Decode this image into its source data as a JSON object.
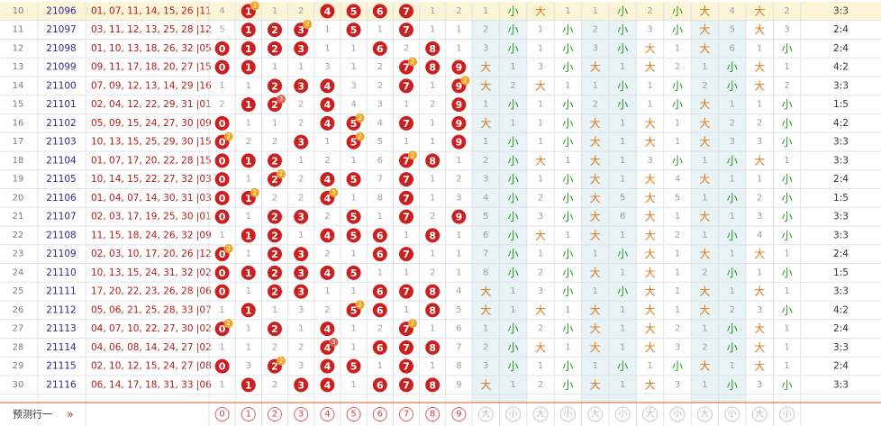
{
  "colors": {
    "ball": "#cc1f1f",
    "repeat_badge": "#f0a424",
    "double_badge": "#e0604a",
    "issue_text": "#2a2a8a",
    "numbers_text": "#b01c1c",
    "da": "#e07818",
    "xiao": "#25941f",
    "gray": "#a0a0a0",
    "highlight_row": "#fcf4d6",
    "highlight_col": "#e7f3f4",
    "grid_line": "#dfe3e8",
    "footer_line": "#e07a4a"
  },
  "columns": {
    "hit_digits": [
      "0",
      "1",
      "2",
      "3",
      "4",
      "5",
      "6",
      "7",
      "8",
      "9"
    ],
    "size_group": [
      "大",
      "小",
      "大",
      "小",
      "大",
      "小",
      "大",
      "小",
      "大",
      "小",
      "大",
      "小"
    ],
    "size_cols_per_group": 2
  },
  "rows": [
    {
      "idx": "10",
      "issue": "21096",
      "numbers": "01, 07, 11, 14, 15, 26 |11",
      "cells": [
        "4",
        "1",
        "1",
        "2",
        "4",
        "5",
        "6",
        "7",
        "1",
        "2"
      ],
      "hits": [
        1,
        4,
        5,
        6,
        7
      ],
      "badges": {
        "1": "2"
      },
      "size": [
        "1",
        "小",
        "大",
        "1",
        "1",
        "小",
        "2",
        "小",
        "大",
        "4",
        "大",
        "2"
      ],
      "ratio": "3:3",
      "highlight": true
    },
    {
      "idx": "11",
      "issue": "21097",
      "numbers": "03, 11, 12, 13, 25, 28 |12",
      "cells": [
        "5",
        "1",
        "2",
        "3",
        "1",
        "5",
        "1",
        "8",
        "1",
        "1"
      ],
      "hits": [
        1,
        2,
        3,
        5,
        7
      ],
      "badges": {
        "3": "2"
      },
      "size": [
        "2",
        "小",
        "1",
        "小",
        "2",
        "小",
        "3",
        "小",
        "大",
        "5",
        "大",
        "3"
      ],
      "ratio": "2:4",
      "highlight": false
    },
    {
      "idx": "12",
      "issue": "21098",
      "numbers": "01, 10, 13, 18, 26, 32 |05",
      "cells": [
        "0",
        "1",
        "2",
        "3",
        "1",
        "1",
        "6",
        "2",
        "8",
        "1"
      ],
      "hits": [
        0,
        1,
        2,
        3,
        6,
        8
      ],
      "badges": {},
      "size": [
        "3",
        "小",
        "1",
        "小",
        "3",
        "小",
        "大",
        "1",
        "大",
        "6",
        "1",
        "小"
      ],
      "ratio": "2:4",
      "highlight": false
    },
    {
      "idx": "13",
      "issue": "21099",
      "numbers": "09, 11, 17, 18, 20, 27 |15",
      "cells": [
        "0",
        "1",
        "1",
        "1",
        "3",
        "1",
        "2",
        "7",
        "8",
        "9"
      ],
      "hits": [
        0,
        1,
        7,
        8,
        9
      ],
      "badges": {
        "7": "2"
      },
      "size": [
        "大",
        "1",
        "3",
        "小",
        "大",
        "1",
        "大",
        "2",
        "1",
        "小",
        "大",
        "1"
      ],
      "ratio": "4:2",
      "highlight": false
    },
    {
      "idx": "14",
      "issue": "21100",
      "numbers": "07, 09, 12, 13, 14, 29 |16",
      "cells": [
        "1",
        "1",
        "2",
        "3",
        "4",
        "3",
        "2",
        "7",
        "1",
        "9"
      ],
      "hits": [
        2,
        3,
        4,
        7,
        9
      ],
      "badges": {
        "9": "2"
      },
      "size": [
        "大",
        "2",
        "大",
        "1",
        "1",
        "小",
        "1",
        "小",
        "2",
        "小",
        "大",
        "2"
      ],
      "ratio": "3:3",
      "highlight": false
    },
    {
      "idx": "15",
      "issue": "21101",
      "numbers": "02, 04, 12, 22, 29, 31 |01",
      "cells": [
        "2",
        "1",
        "2",
        "2",
        "4",
        "4",
        "3",
        "1",
        "2",
        "9"
      ],
      "hits": [
        1,
        2,
        4,
        9
      ],
      "badges": {
        "2": "3"
      },
      "size": [
        "1",
        "小",
        "1",
        "小",
        "2",
        "小",
        "1",
        "小",
        "大",
        "1",
        "1",
        "小"
      ],
      "ratio": "1:5",
      "highlight": false
    },
    {
      "idx": "16",
      "issue": "21102",
      "numbers": "05, 09, 15, 24, 27, 30 |09",
      "cells": [
        "0",
        "1",
        "1",
        "2",
        "4",
        "5",
        "4",
        "7",
        "1",
        "9"
      ],
      "hits": [
        0,
        4,
        5,
        7,
        9
      ],
      "badges": {
        "5": "2"
      },
      "size": [
        "大",
        "1",
        "1",
        "小",
        "大",
        "1",
        "大",
        "1",
        "大",
        "2",
        "2",
        "小"
      ],
      "ratio": "4:2",
      "highlight": false
    },
    {
      "idx": "17",
      "issue": "21103",
      "numbers": "10, 13, 15, 25, 29, 30 |15",
      "cells": [
        "0",
        "2",
        "2",
        "3",
        "1",
        "5",
        "5",
        "1",
        "1",
        "9"
      ],
      "hits": [
        0,
        3,
        5,
        9
      ],
      "badges": {
        "0": "2",
        "5": "2"
      },
      "size": [
        "1",
        "小",
        "1",
        "小",
        "大",
        "1",
        "大",
        "1",
        "大",
        "3",
        "3",
        "小"
      ],
      "ratio": "3:3",
      "highlight": false
    },
    {
      "idx": "18",
      "issue": "21104",
      "numbers": "01, 07, 17, 20, 22, 28 |15",
      "cells": [
        "0",
        "1",
        "2",
        "1",
        "2",
        "1",
        "6",
        "7",
        "8",
        "1"
      ],
      "hits": [
        0,
        1,
        2,
        7,
        8
      ],
      "badges": {
        "7": "2"
      },
      "size": [
        "2",
        "小",
        "大",
        "1",
        "大",
        "1",
        "3",
        "小",
        "1",
        "小",
        "大",
        "1"
      ],
      "ratio": "3:3",
      "highlight": false
    },
    {
      "idx": "19",
      "issue": "21105",
      "numbers": "10, 14, 15, 22, 27, 32 |03",
      "cells": [
        "0",
        "1",
        "2",
        "2",
        "4",
        "5",
        "7",
        "7",
        "1",
        "2"
      ],
      "hits": [
        0,
        2,
        4,
        5,
        7
      ],
      "badges": {
        "2": "2"
      },
      "size": [
        "3",
        "小",
        "1",
        "小",
        "大",
        "1",
        "大",
        "4",
        "大",
        "1",
        "1",
        "小"
      ],
      "ratio": "2:4",
      "highlight": false
    },
    {
      "idx": "20",
      "issue": "21106",
      "numbers": "01, 04, 07, 14, 30, 31 |03",
      "cells": [
        "0",
        "1",
        "2",
        "2",
        "4",
        "1",
        "8",
        "7",
        "1",
        "3"
      ],
      "hits": [
        0,
        1,
        4,
        7
      ],
      "badges": {
        "1": "2",
        "4": "2"
      },
      "size": [
        "4",
        "小",
        "2",
        "小",
        "大",
        "5",
        "大",
        "5",
        "1",
        "小",
        "2",
        "小"
      ],
      "ratio": "1:5",
      "highlight": false
    },
    {
      "idx": "21",
      "issue": "21107",
      "numbers": "02, 03, 17, 19, 25, 30 |01",
      "cells": [
        "0",
        "1",
        "2",
        "3",
        "2",
        "5",
        "1",
        "7",
        "2",
        "9"
      ],
      "hits": [
        0,
        2,
        3,
        5,
        7,
        9
      ],
      "badges": {},
      "size": [
        "5",
        "小",
        "3",
        "小",
        "大",
        "6",
        "大",
        "1",
        "大",
        "1",
        "3",
        "小"
      ],
      "ratio": "3:3",
      "highlight": false
    },
    {
      "idx": "22",
      "issue": "21108",
      "numbers": "11, 15, 18, 24, 26, 32 |09",
      "cells": [
        "1",
        "1",
        "2",
        "1",
        "4",
        "5",
        "6",
        "1",
        "8",
        "1"
      ],
      "hits": [
        1,
        2,
        4,
        5,
        6,
        8
      ],
      "badges": {},
      "size": [
        "6",
        "小",
        "大",
        "1",
        "大",
        "1",
        "大",
        "2",
        "1",
        "小",
        "4",
        "小"
      ],
      "ratio": "3:3",
      "highlight": false
    },
    {
      "idx": "23",
      "issue": "21109",
      "numbers": "02, 03, 10, 17, 20, 26 |12",
      "cells": [
        "0",
        "1",
        "2",
        "3",
        "2",
        "1",
        "6",
        "7",
        "1",
        "1"
      ],
      "hits": [
        0,
        2,
        3,
        6,
        7
      ],
      "badges": {
        "0": "2"
      },
      "size": [
        "7",
        "小",
        "1",
        "小",
        "1",
        "小",
        "大",
        "1",
        "大",
        "1",
        "大",
        "1"
      ],
      "ratio": "2:4",
      "highlight": false
    },
    {
      "idx": "24",
      "issue": "21110",
      "numbers": "10, 13, 15, 24, 31, 32 |02",
      "cells": [
        "0",
        "1",
        "2",
        "3",
        "4",
        "5",
        "1",
        "1",
        "2",
        "1"
      ],
      "hits": [
        0,
        1,
        2,
        3,
        4,
        5
      ],
      "badges": {},
      "size": [
        "8",
        "小",
        "2",
        "小",
        "大",
        "1",
        "大",
        "1",
        "2",
        "小",
        "1",
        "小"
      ],
      "ratio": "1:5",
      "highlight": false
    },
    {
      "idx": "25",
      "issue": "21111",
      "numbers": "17, 20, 22, 23, 26, 28 |06",
      "cells": [
        "0",
        "1",
        "2",
        "3",
        "1",
        "1",
        "6",
        "7",
        "8",
        "4"
      ],
      "hits": [
        0,
        2,
        3,
        6,
        7,
        8
      ],
      "badges": {},
      "size": [
        "大",
        "1",
        "3",
        "小",
        "1",
        "小",
        "大",
        "1",
        "大",
        "1",
        "大",
        "1"
      ],
      "ratio": "3:3",
      "highlight": false
    },
    {
      "idx": "26",
      "issue": "21112",
      "numbers": "05, 06, 21, 25, 28, 33 |07",
      "cells": [
        "1",
        "1",
        "1",
        "3",
        "2",
        "5",
        "6",
        "1",
        "8",
        "5"
      ],
      "hits": [
        1,
        5,
        6,
        8
      ],
      "badges": {
        "5": "2"
      },
      "size": [
        "大",
        "1",
        "大",
        "1",
        "大",
        "1",
        "大",
        "1",
        "大",
        "2",
        "3",
        "小"
      ],
      "ratio": "4:2",
      "highlight": false
    },
    {
      "idx": "27",
      "issue": "21113",
      "numbers": "04, 07, 10, 22, 27, 30 |02",
      "cells": [
        "0",
        "1",
        "2",
        "1",
        "4",
        "1",
        "2",
        "7",
        "1",
        "6"
      ],
      "hits": [
        0,
        2,
        4,
        7
      ],
      "badges": {
        "0": "2",
        "7": "2"
      },
      "size": [
        "1",
        "小",
        "2",
        "小",
        "大",
        "1",
        "大",
        "2",
        "1",
        "小",
        "大",
        "1"
      ],
      "ratio": "2:4",
      "highlight": false
    },
    {
      "idx": "28",
      "issue": "21114",
      "numbers": "04, 06, 08, 14, 24, 27 |02",
      "cells": [
        "1",
        "1",
        "2",
        "2",
        "4",
        "1",
        "6",
        "7",
        "8",
        "7"
      ],
      "hits": [
        4,
        6,
        7,
        8
      ],
      "badges": {
        "4": "3"
      },
      "size": [
        "2",
        "小",
        "大",
        "1",
        "大",
        "1",
        "大",
        "3",
        "2",
        "小",
        "大",
        "1"
      ],
      "ratio": "3:3",
      "highlight": false
    },
    {
      "idx": "29",
      "issue": "21115",
      "numbers": "02, 10, 12, 15, 24, 27 |08",
      "cells": [
        "0",
        "3",
        "2",
        "3",
        "4",
        "5",
        "1",
        "7",
        "1",
        "8"
      ],
      "hits": [
        0,
        2,
        4,
        5,
        7
      ],
      "badges": {
        "2": "2"
      },
      "size": [
        "3",
        "小",
        "1",
        "小",
        "1",
        "小",
        "1",
        "小",
        "大",
        "1",
        "大",
        "1"
      ],
      "ratio": "2:4",
      "highlight": false
    },
    {
      "idx": "30",
      "issue": "21116",
      "numbers": "06, 14, 17, 18, 31, 33 |06",
      "cells": [
        "1",
        "1",
        "2",
        "3",
        "4",
        "1",
        "6",
        "7",
        "8",
        "9"
      ],
      "hits": [
        1,
        3,
        4,
        6,
        7,
        8
      ],
      "badges": {},
      "size": [
        "大",
        "1",
        "2",
        "小",
        "大",
        "1",
        "大",
        "3",
        "1",
        "小",
        "3",
        "小"
      ],
      "ratio": "3:3",
      "highlight": false
    }
  ],
  "footer": {
    "label": "预测行一",
    "arrow": "»",
    "digits": [
      "0",
      "1",
      "2",
      "3",
      "4",
      "5",
      "6",
      "7",
      "8",
      "9"
    ],
    "size": [
      "大",
      "小",
      "大",
      "小",
      "大",
      "小",
      "大",
      "小",
      "大",
      "小",
      "大",
      "小"
    ]
  }
}
